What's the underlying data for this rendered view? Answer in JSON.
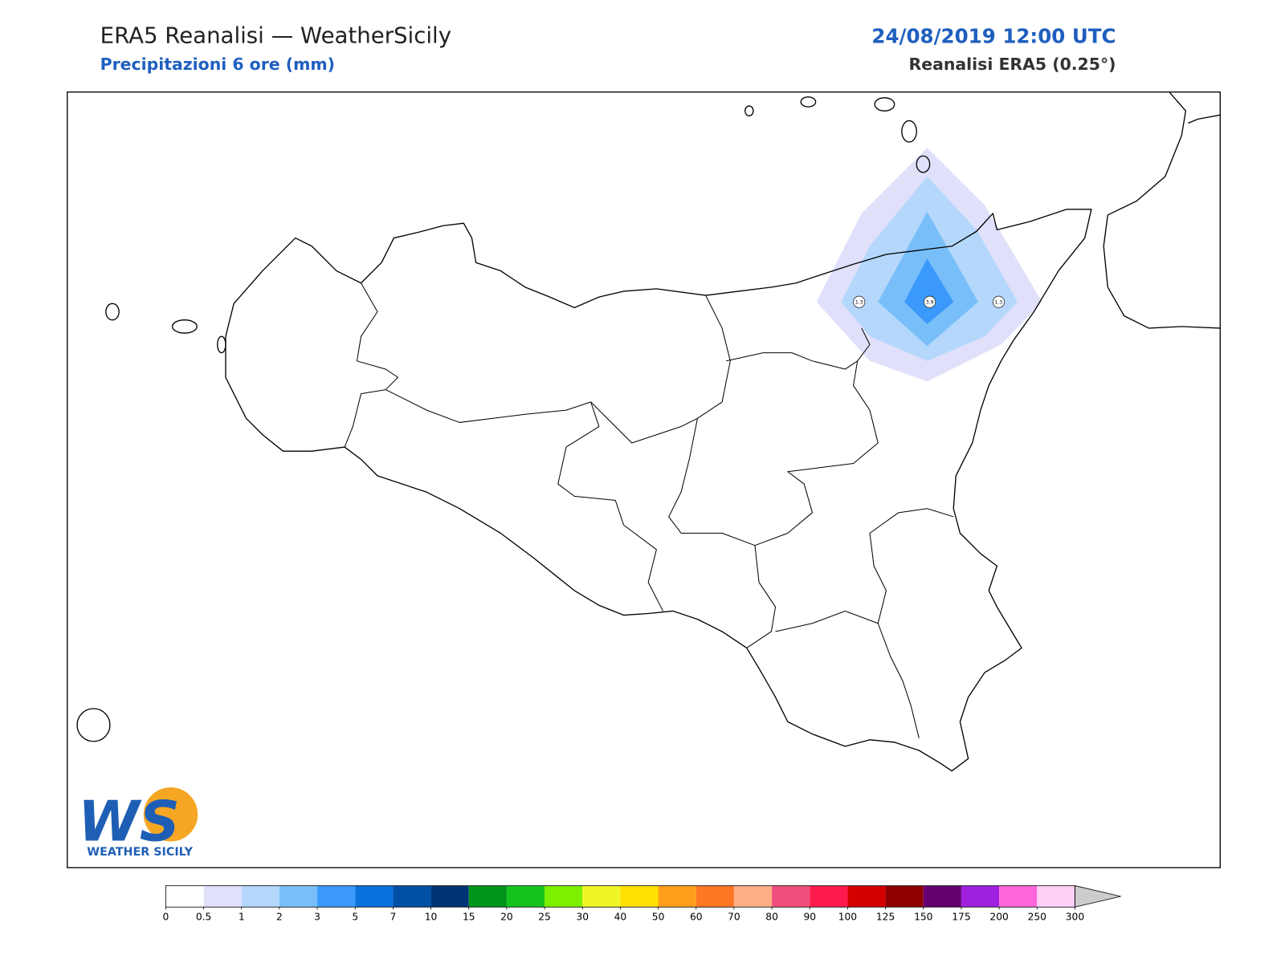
{
  "header": {
    "title": "ERA5 Reanalisi — WeatherSicily",
    "subtitle": "Precipitazioni 6 ore (mm)",
    "valid_time": "24/08/2019 12:00 UTC",
    "source": "Reanalisi ERA5 (0.25°)"
  },
  "station_values": [
    1.3,
    3.9,
    1.3
  ],
  "colorbar": {
    "bounds": [
      0,
      0.5,
      1,
      2,
      3,
      5,
      7,
      10,
      15,
      20,
      25,
      30,
      40,
      50,
      60,
      70,
      80,
      90,
      100,
      125,
      150,
      175,
      200,
      250,
      300
    ],
    "colors": [
      "#ffffff",
      "#e0e0fb",
      "#b4d7fb",
      "#78bffa",
      "#3a99fb",
      "#0a70dc",
      "#0050a6",
      "#003575",
      "#00931c",
      "#14c41b",
      "#7cf000",
      "#f0f526",
      "#ffe000",
      "#ff9e1a",
      "#ff7624",
      "#ffaf85",
      "#ef4f7b",
      "#ff1a4d",
      "#d40000",
      "#900000",
      "#650070",
      "#a020e0",
      "#ff66d9",
      "#ffd0f5"
    ],
    "extend_color": "#cccccc"
  },
  "logo": {
    "mark": "WS",
    "text": "WEATHER SICILY"
  }
}
